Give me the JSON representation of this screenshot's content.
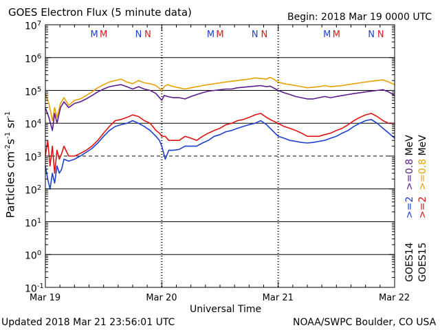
{
  "header": {
    "title": "GOES Electron Flux (5 minute data)",
    "begin": "Begin: 2018 Mar 19 0000 UTC"
  },
  "footer": {
    "updated": "Updated 2018 Mar 21 23:56:01 UTC",
    "credit": "NOAA/SWPC Boulder, CO USA"
  },
  "legend": {
    "goes14": "GOES14",
    "goes15": "GOES15",
    "ge2": ">=2",
    "ge08": ">=0.8",
    "unit": "MeV"
  },
  "markers": [
    {
      "label": "M",
      "x": 0.42,
      "color": "#1a3fcf"
    },
    {
      "label": "M",
      "x": 0.5,
      "color": "#d11a1a"
    },
    {
      "label": "N",
      "x": 0.8,
      "color": "#1a3fcf"
    },
    {
      "label": "N",
      "x": 0.88,
      "color": "#d11a1a"
    },
    {
      "label": "M",
      "x": 1.42,
      "color": "#1a3fcf"
    },
    {
      "label": "M",
      "x": 1.5,
      "color": "#d11a1a"
    },
    {
      "label": "N",
      "x": 1.8,
      "color": "#1a3fcf"
    },
    {
      "label": "N",
      "x": 1.88,
      "color": "#d11a1a"
    },
    {
      "label": "M",
      "x": 2.42,
      "color": "#1a3fcf"
    },
    {
      "label": "M",
      "x": 2.5,
      "color": "#d11a1a"
    },
    {
      "label": "N",
      "x": 2.8,
      "color": "#1a3fcf"
    },
    {
      "label": "N",
      "x": 2.88,
      "color": "#d11a1a"
    }
  ],
  "chart_data": {
    "type": "line",
    "xlabel": "Universal Time",
    "ylabel_main": "Particles cm",
    "ylabel_sup1": "-2",
    "ylabel_mid1": "s",
    "ylabel_sup2": "-1",
    "ylabel_mid2": "sr",
    "ylabel_sup3": "-1",
    "x_ticks": [
      {
        "label": "Mar 19",
        "x": 0
      },
      {
        "label": "Mar 20",
        "x": 1
      },
      {
        "label": "Mar 21",
        "x": 2
      },
      {
        "label": "Mar 22",
        "x": 3
      }
    ],
    "xlim": [
      0,
      3
    ],
    "y_scale": "log",
    "ylim_exp": [
      -1,
      7
    ],
    "y_ticks": [
      {
        "base": "10",
        "exp": "7"
      },
      {
        "base": "10",
        "exp": "6"
      },
      {
        "base": "10",
        "exp": "5"
      },
      {
        "base": "10",
        "exp": "4"
      },
      {
        "base": "10",
        "exp": "3"
      },
      {
        "base": "10",
        "exp": "2"
      },
      {
        "base": "10",
        "exp": "1"
      },
      {
        "base": "10",
        "exp": "0"
      },
      {
        "base": "10",
        "exp": "-1"
      }
    ],
    "threshold_exp": 3,
    "series": [
      {
        "name": "GOES15 >=0.8 MeV",
        "color": "#e8a000",
        "x": [
          0,
          0.03,
          0.06,
          0.08,
          0.1,
          0.13,
          0.16,
          0.2,
          0.25,
          0.3,
          0.35,
          0.4,
          0.45,
          0.5,
          0.55,
          0.6,
          0.65,
          0.7,
          0.75,
          0.8,
          0.85,
          0.9,
          0.95,
          1.0,
          1.02,
          1.05,
          1.1,
          1.15,
          1.2,
          1.25,
          1.3,
          1.35,
          1.4,
          1.45,
          1.5,
          1.55,
          1.6,
          1.65,
          1.7,
          1.75,
          1.8,
          1.85,
          1.9,
          1.93,
          1.95,
          2.0,
          2.05,
          2.1,
          2.15,
          2.2,
          2.25,
          2.3,
          2.35,
          2.4,
          2.45,
          2.5,
          2.55,
          2.6,
          2.65,
          2.7,
          2.75,
          2.8,
          2.85,
          2.9,
          2.95,
          3.0
        ],
        "y": [
          80000.0,
          40000.0,
          12000.0,
          30000.0,
          15000.0,
          40000.0,
          60000.0,
          35000.0,
          50000.0,
          55000.0,
          70000.0,
          90000.0,
          120000.0,
          150000.0,
          180000.0,
          200000.0,
          220000.0,
          180000.0,
          160000.0,
          200000.0,
          170000.0,
          160000.0,
          140000.0,
          100000.0,
          130000.0,
          150000.0,
          130000.0,
          120000.0,
          110000.0,
          120000.0,
          130000.0,
          140000.0,
          150000.0,
          160000.0,
          170000.0,
          180000.0,
          190000.0,
          200000.0,
          210000.0,
          220000.0,
          240000.0,
          230000.0,
          220000.0,
          250000.0,
          230000.0,
          180000.0,
          160000.0,
          150000.0,
          140000.0,
          130000.0,
          120000.0,
          125000.0,
          130000.0,
          140000.0,
          130000.0,
          135000.0,
          140000.0,
          150000.0,
          160000.0,
          170000.0,
          180000.0,
          190000.0,
          200000.0,
          210000.0,
          180000.0,
          150000.0
        ]
      },
      {
        "name": "GOES14 >=0.8 MeV",
        "color": "#5b1a8c",
        "x": [
          0,
          0.03,
          0.06,
          0.08,
          0.1,
          0.13,
          0.16,
          0.2,
          0.25,
          0.3,
          0.35,
          0.4,
          0.45,
          0.5,
          0.55,
          0.6,
          0.65,
          0.7,
          0.75,
          0.8,
          0.85,
          0.9,
          0.95,
          1.0,
          1.02,
          1.05,
          1.1,
          1.15,
          1.2,
          1.25,
          1.3,
          1.35,
          1.4,
          1.45,
          1.5,
          1.55,
          1.6,
          1.65,
          1.7,
          1.75,
          1.8,
          1.85,
          1.9,
          1.93,
          1.95,
          2.0,
          2.05,
          2.1,
          2.15,
          2.2,
          2.25,
          2.3,
          2.35,
          2.4,
          2.45,
          2.5,
          2.55,
          2.6,
          2.65,
          2.7,
          2.75,
          2.8,
          2.85,
          2.9,
          2.95,
          3.0
        ],
        "y": [
          30000.0,
          15000.0,
          6000.0,
          20000.0,
          10000.0,
          30000.0,
          45000.0,
          30000.0,
          40000.0,
          45000.0,
          55000.0,
          70000.0,
          90000.0,
          110000.0,
          130000.0,
          140000.0,
          150000.0,
          130000.0,
          110000.0,
          130000.0,
          110000.0,
          100000.0,
          80000.0,
          50000.0,
          70000.0,
          65000.0,
          60000.0,
          60000.0,
          55000.0,
          65000.0,
          75000.0,
          85000.0,
          95000.0,
          100000.0,
          105000.0,
          110000.0,
          110000.0,
          120000.0,
          125000.0,
          130000.0,
          135000.0,
          140000.0,
          130000.0,
          135000.0,
          125000.0,
          100000.0,
          85000.0,
          75000.0,
          65000.0,
          60000.0,
          55000.0,
          55000.0,
          60000.0,
          65000.0,
          60000.0,
          65000.0,
          70000.0,
          75000.0,
          80000.0,
          85000.0,
          90000.0,
          95000.0,
          100000.0,
          105000.0,
          90000.0,
          70000.0
        ]
      },
      {
        "name": "GOES15 >=2 MeV",
        "color": "#dd1111",
        "x": [
          0,
          0.02,
          0.04,
          0.06,
          0.08,
          0.1,
          0.12,
          0.14,
          0.16,
          0.2,
          0.25,
          0.3,
          0.35,
          0.4,
          0.45,
          0.5,
          0.55,
          0.6,
          0.65,
          0.7,
          0.75,
          0.8,
          0.85,
          0.9,
          0.95,
          0.98,
          1.0,
          1.03,
          1.06,
          1.1,
          1.15,
          1.2,
          1.25,
          1.3,
          1.35,
          1.4,
          1.45,
          1.5,
          1.55,
          1.6,
          1.65,
          1.7,
          1.75,
          1.8,
          1.85,
          1.9,
          1.95,
          2.0,
          2.05,
          2.1,
          2.15,
          2.2,
          2.25,
          2.3,
          2.35,
          2.4,
          2.45,
          2.5,
          2.55,
          2.6,
          2.65,
          2.7,
          2.75,
          2.8,
          2.85,
          2.9,
          2.95,
          3.0
        ],
        "y": [
          1000.0,
          3000.0,
          500.0,
          2000.0,
          300.0,
          1500.0,
          800.0,
          1200.0,
          2000.0,
          1000.0,
          1000.0,
          1200.0,
          1500.0,
          2000.0,
          3000.0,
          5000.0,
          8000.0,
          12000.0,
          13000.0,
          15000.0,
          18000.0,
          16000.0,
          12000.0,
          10000.0,
          6000.0,
          5000.0,
          4000.0,
          4000.0,
          3000.0,
          3000.0,
          3000.0,
          4000.0,
          3500.0,
          3000.0,
          4000.0,
          5000.0,
          6000.0,
          7000.0,
          9000.0,
          10000.0,
          12000.0,
          13000.0,
          15000.0,
          18000.0,
          20000.0,
          15000.0,
          12000.0,
          10000.0,
          8000.0,
          7000.0,
          6000.0,
          5000.0,
          4000.0,
          4000.0,
          4000.0,
          4500.0,
          5000.0,
          6000.0,
          7000.0,
          9000.0,
          12000.0,
          15000.0,
          18000.0,
          20000.0,
          16000.0,
          12000.0,
          10000.0,
          10000.0
        ]
      },
      {
        "name": "GOES14 >=2 MeV",
        "color": "#1a3fcf",
        "x": [
          0,
          0.02,
          0.04,
          0.06,
          0.08,
          0.1,
          0.12,
          0.14,
          0.16,
          0.2,
          0.25,
          0.3,
          0.35,
          0.4,
          0.45,
          0.5,
          0.55,
          0.6,
          0.65,
          0.7,
          0.75,
          0.8,
          0.85,
          0.9,
          0.95,
          0.98,
          1.0,
          1.03,
          1.06,
          1.1,
          1.15,
          1.2,
          1.25,
          1.3,
          1.35,
          1.4,
          1.45,
          1.5,
          1.55,
          1.6,
          1.65,
          1.7,
          1.75,
          1.8,
          1.85,
          1.9,
          1.95,
          2.0,
          2.05,
          2.1,
          2.15,
          2.2,
          2.25,
          2.3,
          2.35,
          2.4,
          2.45,
          2.5,
          2.55,
          2.6,
          2.65,
          2.7,
          2.75,
          2.8,
          2.85,
          2.9,
          2.95,
          3.0
        ],
        "y": [
          500.0,
          200.0,
          100.0,
          300.0,
          150.0,
          500.0,
          300.0,
          400.0,
          800.0,
          700.0,
          800.0,
          1000.0,
          1300.0,
          1700.0,
          2500.0,
          4000.0,
          6000.0,
          8000.0,
          9000.0,
          10000.0,
          12000.0,
          10000.0,
          8000.0,
          6000.0,
          4000.0,
          3000.0,
          2000.0,
          800.0,
          1500.0,
          1500.0,
          1600.0,
          2000.0,
          2000.0,
          2000.0,
          2500.0,
          3000.0,
          4000.0,
          4500.0,
          5500.0,
          6000.0,
          7000.0,
          8000.0,
          9000.0,
          10000.0,
          12000.0,
          9000.0,
          6000.0,
          4000.0,
          3500.0,
          3000.0,
          2800.0,
          2600.0,
          2500.0,
          2600.0,
          2800.0,
          3000.0,
          3500.0,
          4000.0,
          5000.0,
          6000.0,
          8000.0,
          10000.0,
          12000.0,
          13000.0,
          10000.0,
          7000.0,
          5000.0,
          3500.0
        ]
      }
    ]
  }
}
